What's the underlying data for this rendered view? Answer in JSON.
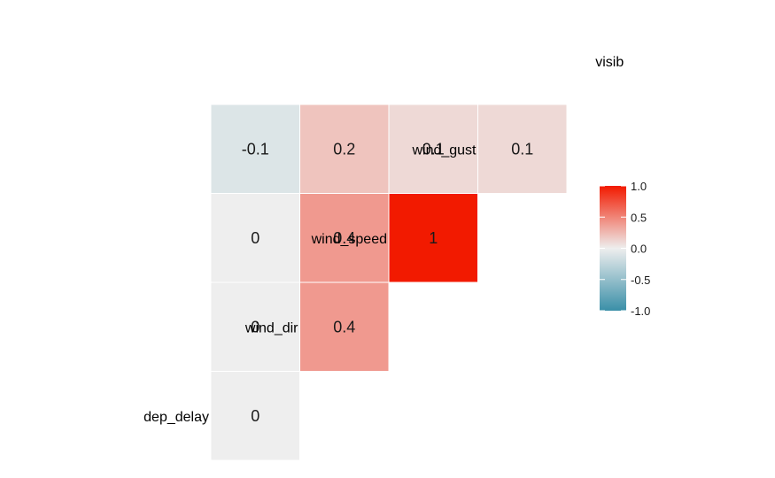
{
  "chart_data": {
    "type": "heatmap",
    "variables": [
      "dep_delay",
      "wind_dir",
      "wind_speed",
      "wind_gust",
      "visib"
    ],
    "cells": [
      {
        "row": "wind_dir",
        "col": "dep_delay",
        "value": 0.0,
        "label": "0"
      },
      {
        "row": "wind_speed",
        "col": "dep_delay",
        "value": 0.0,
        "label": "0"
      },
      {
        "row": "wind_gust",
        "col": "dep_delay",
        "value": 0.0,
        "label": "0"
      },
      {
        "row": "visib",
        "col": "dep_delay",
        "value": -0.1,
        "label": "-0.1"
      },
      {
        "row": "wind_speed",
        "col": "wind_dir",
        "value": 0.4,
        "label": "0.4"
      },
      {
        "row": "wind_gust",
        "col": "wind_dir",
        "value": 0.4,
        "label": "0.4"
      },
      {
        "row": "visib",
        "col": "wind_dir",
        "value": 0.2,
        "label": "0.2"
      },
      {
        "row": "wind_gust",
        "col": "wind_speed",
        "value": 1.0,
        "label": "1"
      },
      {
        "row": "visib",
        "col": "wind_speed",
        "value": 0.1,
        "label": "0.1"
      },
      {
        "row": "visib",
        "col": "wind_gust",
        "value": 0.1,
        "label": "0.1"
      }
    ],
    "legend": {
      "ticks": [
        {
          "value": 1.0,
          "label": "1.0"
        },
        {
          "value": 0.5,
          "label": "0.5"
        },
        {
          "value": 0.0,
          "label": "0.0"
        },
        {
          "value": -0.5,
          "label": "-0.5"
        },
        {
          "value": -1.0,
          "label": "-1.0"
        }
      ],
      "range": [
        -1,
        1
      ],
      "colors": {
        "low": "#3A8FA8",
        "mid": "#EEEEEE",
        "high": "#F21A00"
      },
      "position": "right"
    }
  }
}
